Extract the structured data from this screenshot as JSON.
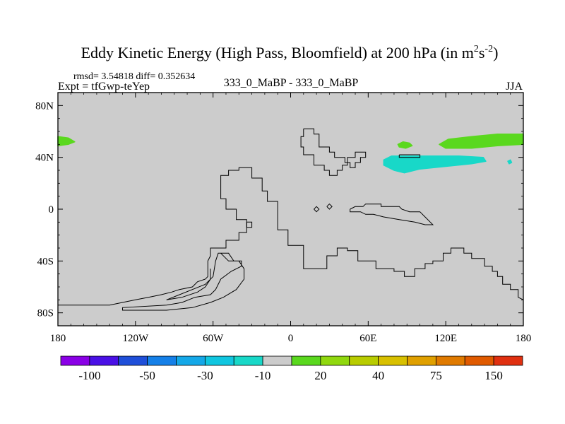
{
  "chart_data": {
    "type": "heatmap",
    "title": "Eddy Kinetic Energy (High Pass, Bloomfield) at 200 hPa (in m",
    "title_units": {
      "sup1": "2",
      "base": "s",
      "sup2": "-2",
      "close": ")"
    },
    "stats_line": "rmsd= 3.54818 diff= 0.352634",
    "left_label": "Expt = tfGwp-teYep",
    "center_label": "333_0_MaBP - 333_0_MaBP",
    "right_label": "JJA",
    "x_axis": {
      "range": [
        -180,
        180
      ],
      "ticks": [
        -180,
        -120,
        -60,
        0,
        60,
        120,
        180
      ],
      "tick_labels": [
        "180",
        "120W",
        "60W",
        "0",
        "60E",
        "120E",
        "180"
      ]
    },
    "y_axis": {
      "range": [
        -90,
        90
      ],
      "ticks": [
        80,
        40,
        0,
        -40,
        -80
      ],
      "tick_labels": [
        "80N",
        "40N",
        "0",
        "40S",
        "80S"
      ]
    },
    "field_color": "#cccccc",
    "colorbar": {
      "colors": [
        "#8a00e6",
        "#4a10e6",
        "#1f4fd9",
        "#1580e8",
        "#14a8e8",
        "#10c6e0",
        "#18d8c8",
        "#cccccc",
        "#5ad81e",
        "#90d80e",
        "#b8cc00",
        "#d8c000",
        "#e0a000",
        "#e07a00",
        "#e05a00",
        "#e03010"
      ],
      "labels": [
        {
          "boundary": 1,
          "text": "-100"
        },
        {
          "boundary": 3,
          "text": "-50"
        },
        {
          "boundary": 5,
          "text": "-30"
        },
        {
          "boundary": 7,
          "text": "-10"
        },
        {
          "boundary": 9,
          "text": "20"
        },
        {
          "boundary": 11,
          "text": "40"
        },
        {
          "boundary": 13,
          "text": "75"
        },
        {
          "boundary": 15,
          "text": "150"
        }
      ]
    },
    "anomalies": [
      {
        "name": "green-band-west",
        "color": "#5ad81e",
        "lon": [
          -180,
          -168
        ],
        "lat": [
          43,
          57
        ],
        "polygon": [
          [
            -180,
            56
          ],
          [
            -172,
            55
          ],
          [
            -167,
            52
          ],
          [
            -172,
            50
          ],
          [
            -180,
            49
          ]
        ]
      },
      {
        "name": "green-band-east",
        "color": "#5ad81e",
        "lon": [
          113,
          180
        ],
        "lat": [
          45,
          57
        ],
        "polygon": [
          [
            115,
            50
          ],
          [
            122,
            54
          ],
          [
            140,
            56
          ],
          [
            160,
            58
          ],
          [
            180,
            58
          ],
          [
            180,
            50
          ],
          [
            160,
            49
          ],
          [
            140,
            47
          ],
          [
            120,
            47
          ]
        ]
      },
      {
        "name": "green-blob-small",
        "color": "#5ad81e",
        "lon": [
          83,
          95
        ],
        "lat": [
          46,
          52
        ],
        "polygon": [
          [
            83,
            50
          ],
          [
            87,
            52
          ],
          [
            92,
            51
          ],
          [
            94,
            49
          ],
          [
            89,
            47
          ],
          [
            84,
            48
          ]
        ]
      },
      {
        "name": "cyan-band",
        "color": "#18d8c8",
        "lon": [
          72,
          151
        ],
        "lat": [
          27,
          41
        ],
        "polygon": [
          [
            72,
            38
          ],
          [
            78,
            41
          ],
          [
            100,
            41
          ],
          [
            130,
            41
          ],
          [
            149,
            40
          ],
          [
            151,
            37
          ],
          [
            140,
            35
          ],
          [
            120,
            33
          ],
          [
            100,
            31
          ],
          [
            88,
            28
          ],
          [
            80,
            30
          ],
          [
            72,
            34
          ]
        ]
      },
      {
        "name": "cyan-dot",
        "color": "#18d8c8",
        "lon": [
          168,
          171
        ],
        "lat": [
          35,
          38
        ],
        "polygon": [
          [
            168,
            37
          ],
          [
            170,
            38
          ],
          [
            171,
            36
          ],
          [
            169,
            35
          ]
        ]
      }
    ],
    "coastlines": [
      [
        [
          10,
          62
        ],
        [
          18,
          62
        ],
        [
          18,
          58
        ],
        [
          22,
          58
        ],
        [
          22,
          48
        ],
        [
          30,
          48
        ],
        [
          30,
          44
        ],
        [
          34,
          44
        ],
        [
          34,
          40
        ],
        [
          42,
          40
        ],
        [
          42,
          36
        ],
        [
          46,
          36
        ],
        [
          46,
          32
        ],
        [
          50,
          32
        ],
        [
          50,
          36
        ],
        [
          54,
          36
        ],
        [
          54,
          40
        ],
        [
          58,
          40
        ],
        [
          58,
          44
        ],
        [
          50,
          44
        ],
        [
          50,
          40
        ],
        [
          44,
          40
        ],
        [
          44,
          34
        ],
        [
          40,
          34
        ],
        [
          40,
          30
        ],
        [
          36,
          30
        ],
        [
          36,
          26
        ],
        [
          30,
          26
        ],
        [
          30,
          30
        ],
        [
          26,
          30
        ],
        [
          26,
          34
        ],
        [
          18,
          34
        ],
        [
          18,
          42
        ],
        [
          10,
          42
        ],
        [
          10,
          48
        ],
        [
          8,
          48
        ],
        [
          8,
          56
        ],
        [
          10,
          56
        ],
        [
          10,
          62
        ]
      ],
      [
        [
          -180,
          -74
        ],
        [
          -140,
          -74
        ],
        [
          -130,
          -72
        ],
        [
          -120,
          -70
        ],
        [
          -110,
          -68
        ],
        [
          -100,
          -66
        ],
        [
          -92,
          -64
        ],
        [
          -86,
          -62
        ],
        [
          -76,
          -60
        ],
        [
          -72,
          -56
        ],
        [
          -66,
          -54
        ],
        [
          -64,
          -52
        ],
        [
          -64,
          -40
        ],
        [
          -62,
          -36
        ],
        [
          -62,
          -30
        ],
        [
          -50,
          -30
        ],
        [
          -50,
          -24
        ],
        [
          -40,
          -24
        ],
        [
          -40,
          -18
        ],
        [
          -34,
          -18
        ],
        [
          -34,
          -8
        ],
        [
          -42,
          -8
        ],
        [
          -42,
          0
        ],
        [
          -50,
          0
        ],
        [
          -50,
          8
        ],
        [
          -54,
          8
        ],
        [
          -54,
          26
        ],
        [
          -48,
          26
        ],
        [
          -48,
          30
        ],
        [
          -40,
          30
        ],
        [
          -40,
          32
        ],
        [
          -30,
          32
        ],
        [
          -30,
          24
        ],
        [
          -22,
          24
        ],
        [
          -22,
          14
        ],
        [
          -18,
          14
        ],
        [
          -18,
          6
        ],
        [
          -10,
          6
        ],
        [
          -10,
          -16
        ],
        [
          -2,
          -16
        ],
        [
          -2,
          -28
        ],
        [
          10,
          -28
        ],
        [
          10,
          -46
        ],
        [
          28,
          -46
        ],
        [
          28,
          -36
        ],
        [
          36,
          -36
        ],
        [
          36,
          -30
        ],
        [
          44,
          -30
        ],
        [
          44,
          -32
        ],
        [
          52,
          -32
        ],
        [
          52,
          -40
        ],
        [
          66,
          -40
        ],
        [
          66,
          -46
        ],
        [
          80,
          -46
        ],
        [
          80,
          -48
        ],
        [
          88,
          -48
        ],
        [
          88,
          -52
        ],
        [
          96,
          -52
        ],
        [
          96,
          -46
        ],
        [
          104,
          -46
        ],
        [
          104,
          -42
        ],
        [
          110,
          -42
        ],
        [
          110,
          -40
        ],
        [
          118,
          -40
        ],
        [
          118,
          -34
        ],
        [
          124,
          -34
        ],
        [
          124,
          -30
        ],
        [
          134,
          -30
        ],
        [
          134,
          -34
        ],
        [
          140,
          -34
        ],
        [
          140,
          -38
        ],
        [
          150,
          -38
        ],
        [
          150,
          -44
        ],
        [
          156,
          -44
        ],
        [
          156,
          -48
        ],
        [
          160,
          -48
        ],
        [
          160,
          -52
        ],
        [
          164,
          -52
        ],
        [
          164,
          -58
        ],
        [
          170,
          -58
        ],
        [
          170,
          -62
        ],
        [
          176,
          -62
        ],
        [
          176,
          -68
        ],
        [
          180,
          -70
        ]
      ],
      [
        [
          -96,
          -70
        ],
        [
          -86,
          -66
        ],
        [
          -76,
          -62
        ],
        [
          -66,
          -58
        ],
        [
          -60,
          -52
        ],
        [
          -58,
          -40
        ],
        [
          -56,
          -34
        ],
        [
          -48,
          -34
        ],
        [
          -44,
          -40
        ],
        [
          -38,
          -40
        ],
        [
          -38,
          -44
        ],
        [
          -46,
          -48
        ],
        [
          -54,
          -54
        ],
        [
          -58,
          -62
        ],
        [
          -62,
          -66
        ],
        [
          -74,
          -68
        ],
        [
          -84,
          -72
        ],
        [
          -96,
          -74
        ],
        [
          -130,
          -76
        ],
        [
          -130,
          -78
        ],
        [
          -96,
          -78
        ],
        [
          -76,
          -76
        ],
        [
          -62,
          -72
        ],
        [
          -52,
          -68
        ],
        [
          -42,
          -62
        ],
        [
          -36,
          -54
        ],
        [
          -36,
          -46
        ],
        [
          -40,
          -40
        ],
        [
          -48,
          -40
        ],
        [
          -54,
          -34
        ]
      ],
      [
        [
          -96,
          -70
        ],
        [
          -84,
          -68
        ],
        [
          -72,
          -64
        ],
        [
          -66,
          -60
        ],
        [
          -62,
          -54
        ],
        [
          -62,
          -46
        ]
      ],
      [
        [
          46,
          0
        ],
        [
          50,
          2
        ],
        [
          56,
          2
        ],
        [
          58,
          4
        ],
        [
          70,
          4
        ],
        [
          70,
          2
        ],
        [
          84,
          2
        ],
        [
          86,
          0
        ],
        [
          92,
          -2
        ],
        [
          100,
          -2
        ],
        [
          104,
          -6
        ],
        [
          108,
          -10
        ],
        [
          110,
          -12
        ],
        [
          104,
          -12
        ],
        [
          96,
          -10
        ],
        [
          84,
          -8
        ],
        [
          72,
          -6
        ],
        [
          64,
          -4
        ],
        [
          58,
          -4
        ],
        [
          54,
          -2
        ],
        [
          46,
          -2
        ],
        [
          46,
          0
        ]
      ],
      [
        [
          18,
          0
        ],
        [
          20,
          2
        ],
        [
          22,
          0
        ],
        [
          20,
          -2
        ],
        [
          18,
          0
        ]
      ],
      [
        [
          28,
          2
        ],
        [
          30,
          4
        ],
        [
          32,
          2
        ],
        [
          30,
          0
        ],
        [
          28,
          2
        ]
      ],
      [
        [
          -34,
          -10
        ],
        [
          -34,
          -14
        ],
        [
          -30,
          -14
        ],
        [
          -30,
          -10
        ],
        [
          -34,
          -10
        ]
      ],
      [
        [
          -48,
          -90
        ],
        [
          -100,
          -90
        ],
        [
          -150,
          -90
        ]
      ],
      [
        [
          84,
          42
        ],
        [
          100,
          42
        ],
        [
          100,
          40
        ],
        [
          84,
          40
        ],
        [
          84,
          42
        ]
      ]
    ]
  }
}
